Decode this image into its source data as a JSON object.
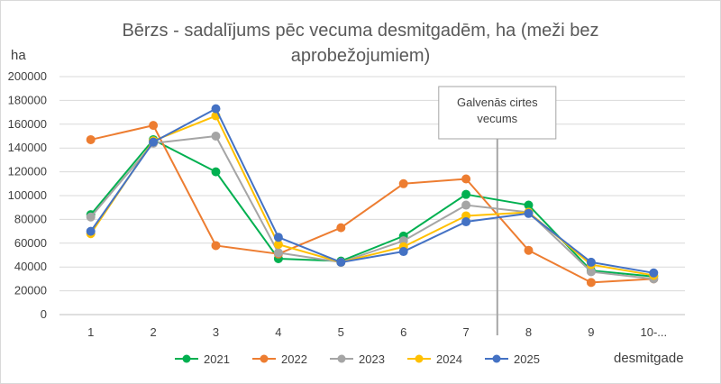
{
  "chart_data": {
    "type": "line",
    "title_lines": [
      "Bērzs - sadalījums pēc vecuma desmitgadēm, ha (meži bez",
      "aprobežojumiem)"
    ],
    "ylabel": "ha",
    "xlabel": "desmitgade",
    "categories": [
      "1",
      "2",
      "3",
      "4",
      "5",
      "6",
      "7",
      "8",
      "9",
      "10-..."
    ],
    "ylim": [
      0,
      200000
    ],
    "yticks": [
      "0",
      "20000",
      "40000",
      "60000",
      "80000",
      "100000",
      "120000",
      "140000",
      "160000",
      "180000",
      "200000"
    ],
    "grid": true,
    "legend_position": "bottom",
    "annotation": {
      "lines": [
        "Galvenās cirtes",
        "vecums"
      ],
      "between_categories": [
        "7",
        "8"
      ]
    },
    "series": [
      {
        "name": "2021",
        "color": "#00B050",
        "values": [
          84000,
          147000,
          120000,
          47000,
          45000,
          66000,
          101000,
          92000,
          37000,
          32000
        ]
      },
      {
        "name": "2022",
        "color": "#ED7D31",
        "values": [
          147000,
          159000,
          58000,
          51000,
          73000,
          110000,
          114000,
          54000,
          27000,
          30000
        ]
      },
      {
        "name": "2023",
        "color": "#A5A5A5",
        "values": [
          82000,
          144000,
          150000,
          52000,
          44000,
          62000,
          92000,
          86000,
          36000,
          30000
        ]
      },
      {
        "name": "2024",
        "color": "#FFC000",
        "values": [
          68000,
          146000,
          167000,
          59000,
          44000,
          57000,
          83000,
          86000,
          42000,
          33000
        ]
      },
      {
        "name": "2025",
        "color": "#4472C4",
        "values": [
          70000,
          145000,
          173000,
          65000,
          44000,
          53000,
          78000,
          85000,
          44000,
          35000
        ]
      }
    ]
  }
}
